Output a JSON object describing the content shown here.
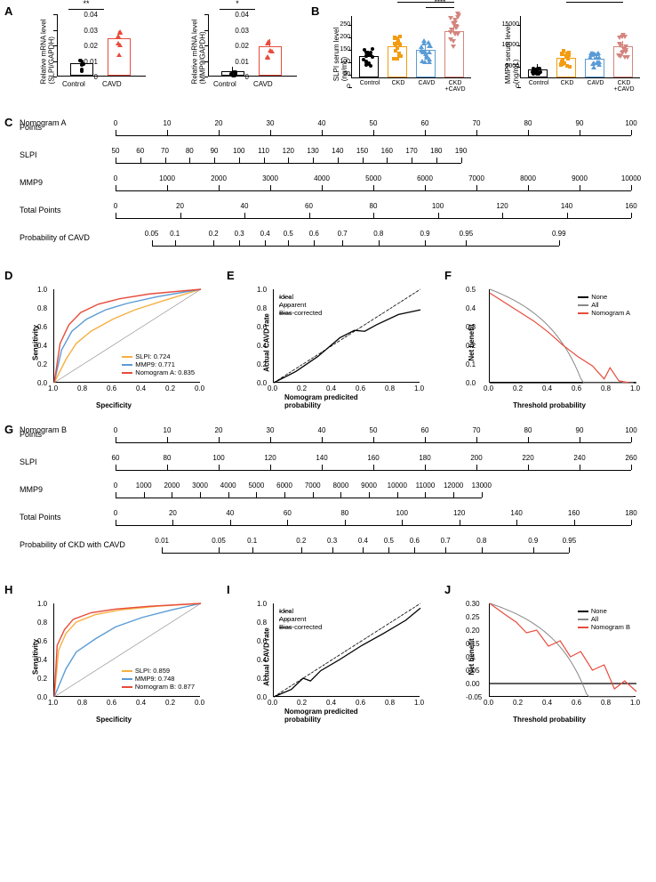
{
  "colors": {
    "control": "#000000",
    "cavd": "#e74c3c",
    "ckd": "#f39c12",
    "cavd_blue": "#5b9bd5",
    "ckdcavd": "#d4857e",
    "slpi_line": "#f5b041",
    "mmp9_line": "#5b9bd5",
    "nomo_line": "#e74c3c",
    "none_line": "#000000",
    "all_line": "#888888",
    "grid": "#888888"
  },
  "panel_labels": {
    "A": "A",
    "B": "B",
    "C": "C",
    "D": "D",
    "E": "E",
    "F": "F",
    "G": "G",
    "H": "H",
    "I": "I",
    "J": "J"
  },
  "panelA": {
    "chart1": {
      "ylabel": "Relative mRNA level\n(SLPI/GAPDH)",
      "ymax": 0.04,
      "yticks": [
        0,
        0.01,
        0.02,
        0.03,
        0.04
      ],
      "control_mean": 0.008,
      "cavd_mean": 0.024,
      "xlabels": [
        "Control",
        "CAVD"
      ],
      "sig": "**"
    },
    "chart2": {
      "ylabel": "Relative mRNA level\n(MMP9/GAPDH)",
      "ymax": 0.04,
      "yticks": [
        0,
        0.01,
        0.02,
        0.03,
        0.04
      ],
      "control_mean": 0.003,
      "cavd_mean": 0.019,
      "xlabels": [
        "Control",
        "CAVD"
      ],
      "sig": "*"
    }
  },
  "panelB": {
    "chart1": {
      "ylabel": "SLPI serum level\n(ng/mL)",
      "ymax": 250,
      "yticks": [
        0,
        50,
        100,
        150,
        200,
        250
      ],
      "groups": [
        "Control",
        "CKD",
        "CAVD",
        "CKD\n+CAVD"
      ],
      "means": [
        85,
        125,
        110,
        185
      ],
      "sigs": [
        "*",
        "***",
        "***",
        "****"
      ]
    },
    "chart2": {
      "ylabel": "MMP9 serum level\n(ng/mL)",
      "ymax": 15000,
      "yticks": [
        0,
        5000,
        10000,
        15000
      ],
      "groups": [
        "Control",
        "CKD",
        "CAVD",
        "CKD\n+CAVD"
      ],
      "means": [
        2000,
        4800,
        4500,
        7500
      ],
      "sigs": [
        "***",
        "**",
        "**"
      ]
    }
  },
  "nomoA": {
    "title": "Nomogram A",
    "rows": [
      {
        "label": "Points",
        "start": 0,
        "end": 100,
        "step": 10,
        "lstart": 0,
        "lend": 1
      },
      {
        "label": "SLPI",
        "start": 50,
        "end": 190,
        "step": 10,
        "lstart": 0,
        "lend": 0.67
      },
      {
        "label": "MMP9",
        "start": 0,
        "end": 10000,
        "step": 1000,
        "lstart": 0,
        "lend": 1
      },
      {
        "label": "Total Points",
        "start": 0,
        "end": 160,
        "step": 20,
        "lstart": 0,
        "lend": 1
      },
      {
        "label": "Probability of CAVD",
        "ticks": [
          0.05,
          0.1,
          0.2,
          0.3,
          0.4,
          0.5,
          0.6,
          0.7,
          0.8,
          0.9,
          0.95,
          0.99
        ],
        "positions": [
          0.07,
          0.115,
          0.19,
          0.24,
          0.29,
          0.335,
          0.385,
          0.44,
          0.51,
          0.6,
          0.68,
          0.86
        ],
        "lstart": 0.07,
        "lend": 0.86
      }
    ]
  },
  "roc_A": {
    "xlabel": "Specificity",
    "ylabel": "Sensitivity",
    "xticks": [
      "1.0",
      "0.8",
      "0.6",
      "0.4",
      "0.2",
      "0.0"
    ],
    "yticks": [
      "0.0",
      "0.2",
      "0.4",
      "0.6",
      "0.8",
      "1.0"
    ],
    "legend": [
      {
        "label": "SLPI: 0.724",
        "color": "#f5b041"
      },
      {
        "label": "MMP9: 0.771",
        "color": "#5b9bd5"
      },
      {
        "label": "Nomogram A: 0.835",
        "color": "#e74c3c"
      }
    ]
  },
  "calib_A": {
    "xlabel": "Nomogram predicited probability",
    "ylabel": "Actual CAVD rate",
    "legend": [
      "Ideal",
      "Apparent",
      "Bias-corrected"
    ]
  },
  "dca_A": {
    "xlabel": "Threshold probability",
    "ylabel": "Net benefit",
    "yticks": [
      "0.0",
      "0.1",
      "0.2",
      "0.3",
      "0.4",
      "0.5"
    ],
    "legend": [
      {
        "label": "None",
        "color": "#000000"
      },
      {
        "label": "All",
        "color": "#888888"
      },
      {
        "label": "Nomogram A",
        "color": "#e74c3c"
      }
    ]
  },
  "nomoB": {
    "title": "Nomogram B",
    "rows": [
      {
        "label": "Points",
        "start": 0,
        "end": 100,
        "step": 10,
        "lstart": 0,
        "lend": 1
      },
      {
        "label": "SLPI",
        "start": 60,
        "end": 260,
        "step": 20,
        "lstart": 0,
        "lend": 1
      },
      {
        "label": "MMP9",
        "start": 0,
        "end": 13000,
        "step": 1000,
        "lstart": 0,
        "lend": 0.71
      },
      {
        "label": "Total Points",
        "start": 0,
        "end": 180,
        "step": 20,
        "lstart": 0,
        "lend": 1
      },
      {
        "label": "Probability of CKD with CAVD",
        "ticks": [
          0.01,
          0.05,
          0.1,
          0.2,
          0.3,
          0.4,
          0.5,
          0.6,
          0.7,
          0.8,
          0.9,
          0.95
        ],
        "positions": [
          0.09,
          0.2,
          0.265,
          0.36,
          0.42,
          0.48,
          0.53,
          0.58,
          0.64,
          0.71,
          0.81,
          0.88
        ],
        "lstart": 0.09,
        "lend": 0.88
      }
    ]
  },
  "roc_B": {
    "xlabel": "Specificity",
    "ylabel": "Sensitivity",
    "xticks": [
      "1.0",
      "0.8",
      "0.6",
      "0.4",
      "0.2",
      "0.0"
    ],
    "yticks": [
      "0.0",
      "0.2",
      "0.4",
      "0.6",
      "0.8",
      "1.0"
    ],
    "legend": [
      {
        "label": "SLPI: 0.859",
        "color": "#f5b041"
      },
      {
        "label": "MMP9: 0.748",
        "color": "#5b9bd5"
      },
      {
        "label": "Nomogram B: 0.877",
        "color": "#e74c3c"
      }
    ]
  },
  "calib_B": {
    "xlabel": "Nomogram predicited probability",
    "ylabel": "Actual CAVD rate",
    "legend": [
      "Ideal",
      "Apparent",
      "Bias-corrected"
    ]
  },
  "dca_B": {
    "xlabel": "Threshold probability",
    "ylabel": "Net benefit",
    "yticks": [
      "-0.05",
      "0.00",
      "0.05",
      "0.1",
      "0.15",
      "0.20",
      "0.25",
      "0.30"
    ],
    "legend": [
      {
        "label": "None",
        "color": "#000000"
      },
      {
        "label": "All",
        "color": "#888888"
      },
      {
        "label": "Nomogram B",
        "color": "#e74c3c"
      }
    ]
  }
}
